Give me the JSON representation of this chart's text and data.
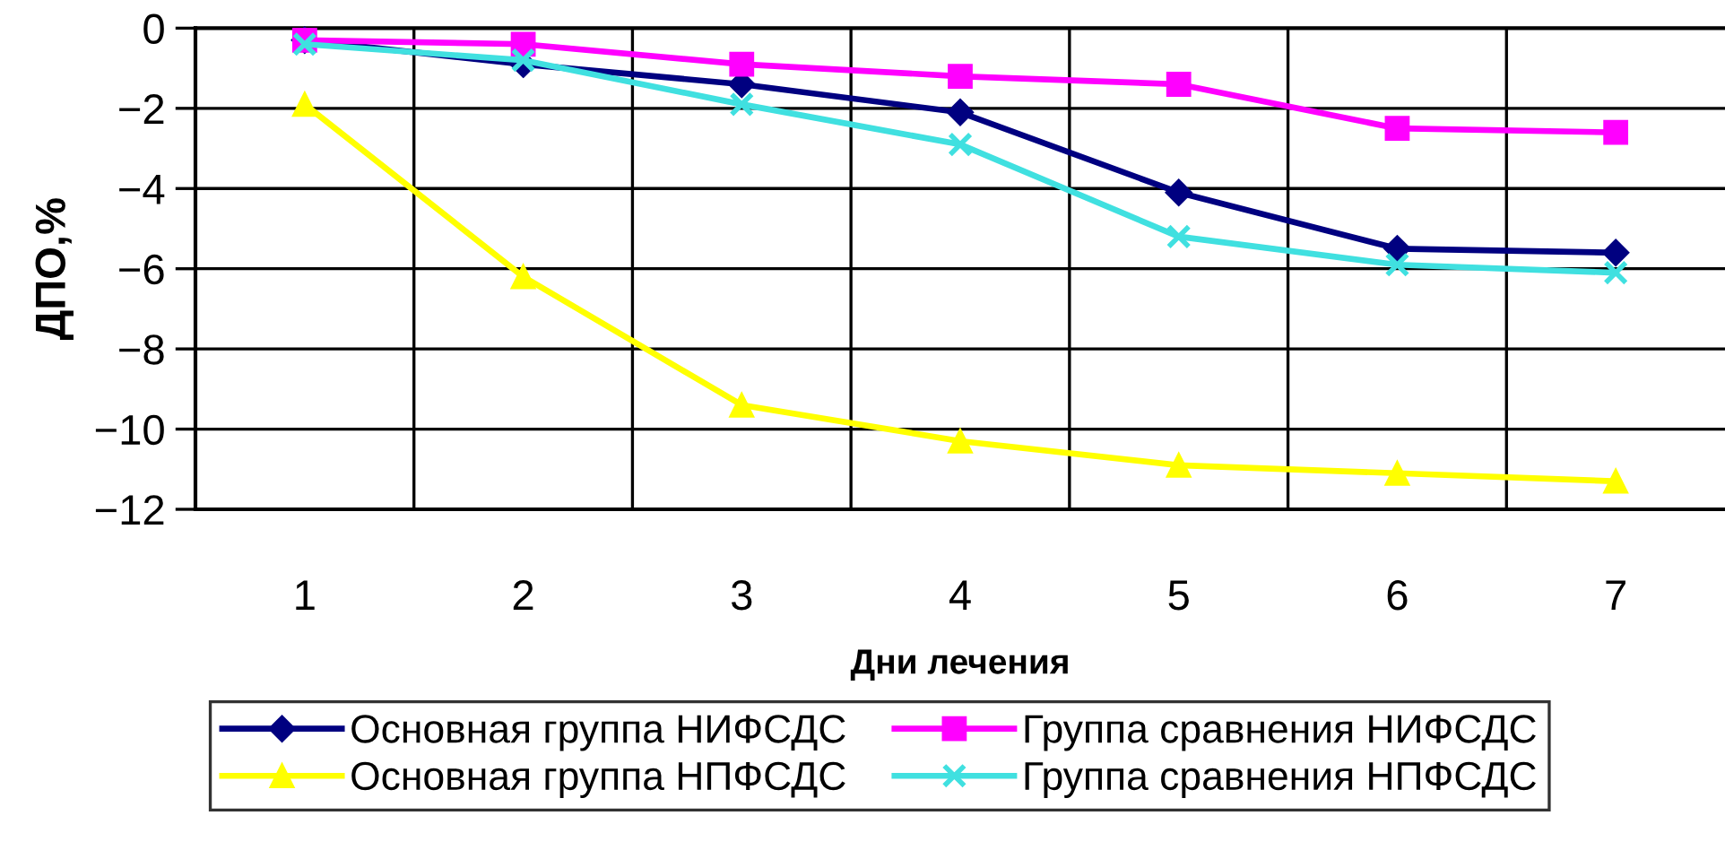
{
  "chart_data": {
    "type": "line",
    "xlabel": "Дни лечения",
    "ylabel": "ДПО,%",
    "categories": [
      "1",
      "2",
      "3",
      "4",
      "5",
      "6",
      "7"
    ],
    "series": [
      {
        "name": "Основная группа НИФСДС",
        "color": "#000080",
        "marker": "diamond",
        "values": [
          -0.3,
          -0.9,
          -1.4,
          -2.1,
          -4.1,
          -5.5,
          -5.6
        ]
      },
      {
        "name": "Группа сравнения НИФСДС",
        "color": "#ff00ff",
        "marker": "square",
        "values": [
          -0.3,
          -0.4,
          -0.9,
          -1.2,
          -1.4,
          -2.5,
          -2.6
        ]
      },
      {
        "name": "Основная группа НПФСДС",
        "color": "#ffff00",
        "marker": "triangle",
        "values": [
          -1.9,
          -6.2,
          -9.4,
          -10.3,
          -10.9,
          -11.1,
          -11.3
        ]
      },
      {
        "name": "Группа сравнения НПФСДС",
        "color": "#40e0e0",
        "marker": "cross",
        "values": [
          -0.4,
          -0.8,
          -1.9,
          -2.9,
          -5.2,
          -5.9,
          -6.1
        ]
      }
    ],
    "ylim": [
      -12,
      0
    ],
    "yticks": [
      -12,
      -10,
      -8,
      -6,
      -4,
      -2,
      0
    ],
    "grid": true,
    "legend": "bottom",
    "line_style": "solid"
  }
}
